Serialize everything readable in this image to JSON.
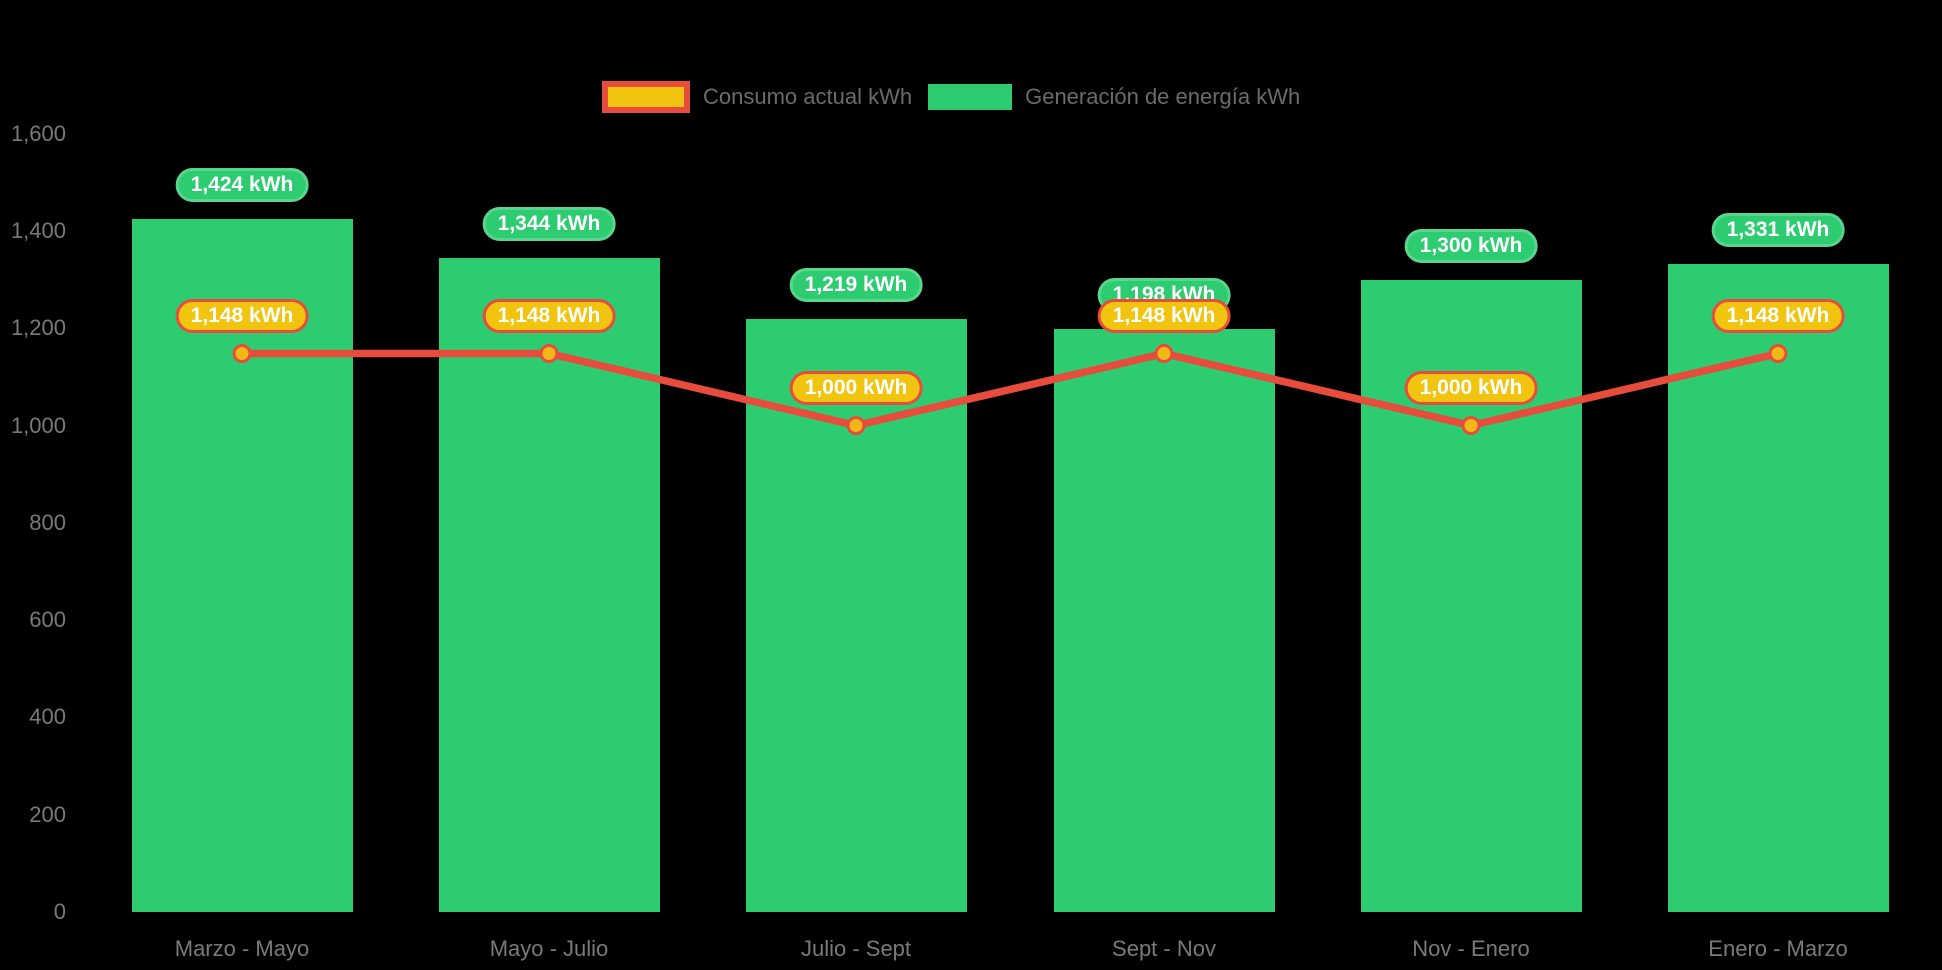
{
  "chart_data": {
    "type": "bar+line",
    "categories": [
      "Marzo - Mayo",
      "Mayo - Julio",
      "Julio - Sept",
      "Sept - Nov",
      "Nov - Enero",
      "Enero - Marzo"
    ],
    "series": [
      {
        "name": "Consumo actual kWh",
        "type": "line",
        "values": [
          1148,
          1148,
          1000,
          1148,
          1000,
          1148
        ],
        "labels": [
          "1,148 kWh",
          "1,148 kWh",
          "1,000 kWh",
          "1,148 kWh",
          "1,000 kWh",
          "1,148 kWh"
        ]
      },
      {
        "name": "Generación de energía kWh",
        "type": "bar",
        "values": [
          1424,
          1344,
          1219,
          1198,
          1300,
          1331
        ],
        "labels": [
          "1,424 kWh",
          "1,344 kWh",
          "1,219 kWh",
          "1,198 kWh",
          "1,300 kWh",
          "1,331 kWh"
        ]
      }
    ],
    "ylim": [
      0,
      1600
    ],
    "ytick_values": [
      0,
      200,
      400,
      600,
      800,
      1000,
      1200,
      1400,
      1600
    ],
    "ytick_labels": [
      "0",
      "200",
      "400",
      "600",
      "800",
      "1,000",
      "1,200",
      "1,400",
      "1,600"
    ],
    "grid": false,
    "legend_position": "top-center"
  },
  "colors": {
    "bar_green": "#2ECC71",
    "pill_green_border": "#58D68D",
    "line_red": "#E74C3C",
    "gold": "#F1C40F",
    "point_gold": "#F0B816",
    "pill_text": "#FFFFFF",
    "axis_text": "#7A7A7A",
    "legend_text": "#6B6B6B",
    "background": "#000000"
  }
}
